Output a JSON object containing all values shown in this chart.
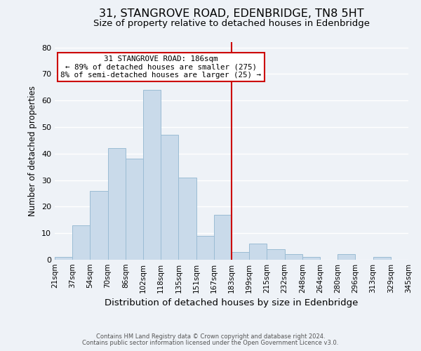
{
  "title": "31, STANGROVE ROAD, EDENBRIDGE, TN8 5HT",
  "subtitle": "Size of property relative to detached houses in Edenbridge",
  "xlabel": "Distribution of detached houses by size in Edenbridge",
  "ylabel": "Number of detached properties",
  "footnote1": "Contains HM Land Registry data © Crown copyright and database right 2024.",
  "footnote2": "Contains public sector information licensed under the Open Government Licence v3.0.",
  "bin_labels": [
    "21sqm",
    "37sqm",
    "54sqm",
    "70sqm",
    "86sqm",
    "102sqm",
    "118sqm",
    "135sqm",
    "151sqm",
    "167sqm",
    "183sqm",
    "199sqm",
    "215sqm",
    "232sqm",
    "248sqm",
    "264sqm",
    "280sqm",
    "296sqm",
    "313sqm",
    "329sqm",
    "345sqm"
  ],
  "bar_heights": [
    1,
    13,
    26,
    42,
    38,
    64,
    47,
    31,
    9,
    17,
    3,
    6,
    4,
    2,
    1,
    0,
    2,
    0,
    1,
    0
  ],
  "bar_color": "#c9daea",
  "bar_edge_color": "#9bbcd4",
  "vline_position": 10,
  "vline_color": "#cc0000",
  "annotation_title": "31 STANGROVE ROAD: 186sqm",
  "annotation_line1": "← 89% of detached houses are smaller (275)",
  "annotation_line2": "8% of semi-detached houses are larger (25) →",
  "annotation_box_facecolor": "#ffffff",
  "annotation_box_edgecolor": "#cc0000",
  "ylim": [
    0,
    82
  ],
  "yticks": [
    0,
    10,
    20,
    30,
    40,
    50,
    60,
    70,
    80
  ],
  "background_color": "#eef2f7",
  "grid_color": "#ffffff",
  "title_fontsize": 11.5,
  "subtitle_fontsize": 9.5,
  "xlabel_fontsize": 9.5,
  "ylabel_fontsize": 8.5,
  "tick_fontsize": 7.5,
  "footnote_fontsize": 6.0
}
